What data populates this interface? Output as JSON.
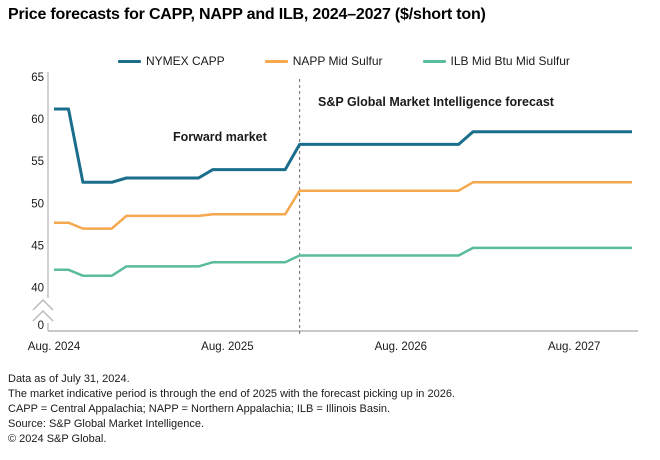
{
  "title": "Price forecasts for CAPP, NAPP and ILB, 2024–2027 ($/short ton)",
  "legend": [
    {
      "label": "NYMEX CAPP",
      "color": "#1A6E8C"
    },
    {
      "label": "NAPP Mid Sulfur",
      "color": "#F5A84D"
    },
    {
      "label": "ILB Mid Btu Mid Sulfur",
      "color": "#5ABB9E"
    }
  ],
  "annotations": {
    "forward_market": "Forward market",
    "forecast": "S&P Global Market Intelligence forecast"
  },
  "chart_data": {
    "type": "line",
    "title": "Price forecasts for CAPP, NAPP and ILB, 2024–2027 ($/short ton)",
    "ylabel": "$/short ton",
    "x_unit": "months_from_2024-08",
    "x_tick_labels": [
      "Aug. 2024",
      "Aug. 2025",
      "Aug. 2026",
      "Aug. 2027"
    ],
    "x_tick_positions": [
      0,
      12,
      24,
      36
    ],
    "x_range_months": [
      0,
      40
    ],
    "y_ticks": [
      65,
      60,
      55,
      50,
      45,
      40
    ],
    "y_axis_break": true,
    "y_zero_label": "0",
    "ylim_display": [
      40,
      65
    ],
    "grid": false,
    "legend_position": "top",
    "forecast_divider_month": 17,
    "series": [
      {
        "name": "NYMEX CAPP",
        "color": "#1A6E8C",
        "width": 3,
        "points": [
          [
            0,
            61.2
          ],
          [
            1,
            61.2
          ],
          [
            2,
            52.5
          ],
          [
            4,
            52.5
          ],
          [
            5,
            53.0
          ],
          [
            10,
            53.0
          ],
          [
            11,
            54.0
          ],
          [
            16,
            54.0
          ],
          [
            17,
            57.0
          ],
          [
            28,
            57.0
          ],
          [
            29,
            58.5
          ],
          [
            40,
            58.5
          ]
        ]
      },
      {
        "name": "NAPP Mid Sulfur",
        "color": "#F5A84D",
        "width": 2.5,
        "points": [
          [
            0,
            47.7
          ],
          [
            1,
            47.7
          ],
          [
            2,
            47.0
          ],
          [
            4,
            47.0
          ],
          [
            5,
            48.5
          ],
          [
            10,
            48.5
          ],
          [
            11,
            48.7
          ],
          [
            16,
            48.7
          ],
          [
            17,
            51.5
          ],
          [
            28,
            51.5
          ],
          [
            29,
            52.5
          ],
          [
            40,
            52.5
          ]
        ]
      },
      {
        "name": "ILB Mid Btu Mid Sulfur",
        "color": "#5ABB9E",
        "width": 2.5,
        "points": [
          [
            0,
            42.1
          ],
          [
            1,
            42.1
          ],
          [
            2,
            41.4
          ],
          [
            4,
            41.4
          ],
          [
            5,
            42.5
          ],
          [
            10,
            42.5
          ],
          [
            11,
            43.0
          ],
          [
            16,
            43.0
          ],
          [
            17,
            43.8
          ],
          [
            28,
            43.8
          ],
          [
            29,
            44.7
          ],
          [
            40,
            44.7
          ]
        ]
      }
    ],
    "divider_color": "#6b6b6b",
    "axis_color": "#c4c4c4"
  },
  "footnotes": [
    "Data as of July 31, 2024.",
    "The market indicative period is through the end of 2025 with the forecast picking up in 2026.",
    "CAPP = Central Appalachia; NAPP = Northern Appalachia; ILB = Illinois Basin.",
    "Source: S&P Global Market Intelligence.",
    "© 2024 S&P Global."
  ]
}
